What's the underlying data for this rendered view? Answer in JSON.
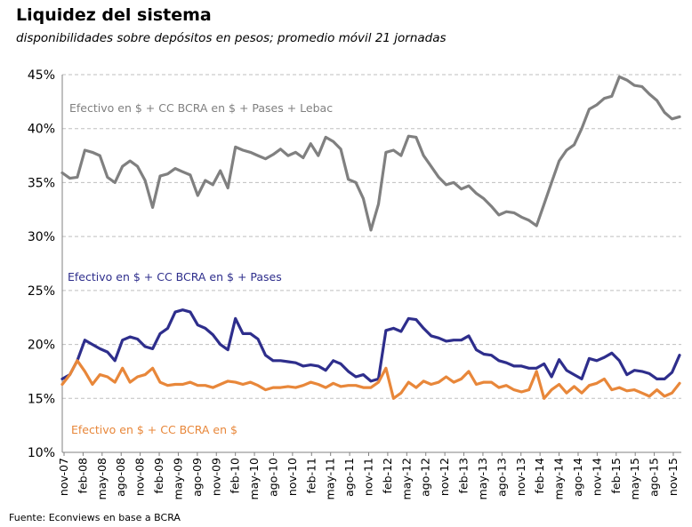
{
  "title": "Liquidez del sistema",
  "subtitle": "disponibilidades sobre depósitos en pesos; promedio móvil 21  jornadas",
  "source": "Fuente: Econviews en base a BCRA",
  "chart_data": {
    "type": "line",
    "y_ticks": [
      "10%",
      "15%",
      "20%",
      "25%",
      "30%",
      "35%",
      "40%",
      "45%"
    ],
    "ylim": [
      10,
      45
    ],
    "x_tick_labels": [
      "nov-07",
      "feb-08",
      "may-08",
      "ago-08",
      "nov-08",
      "feb-09",
      "may-09",
      "ago-09",
      "nov-09",
      "feb-10",
      "may-10",
      "ago-10",
      "nov-10",
      "feb-11",
      "may-11",
      "ago-11",
      "nov-11",
      "feb-12",
      "may-12",
      "ago-12",
      "nov-12",
      "feb-13",
      "may-13",
      "ago-13",
      "nov-13",
      "feb-14",
      "may-14",
      "ago-14",
      "nov-14",
      "feb-15",
      "may-15",
      "ago-15",
      "nov-15"
    ],
    "grid": "horizontal dashed",
    "series": [
      {
        "name": "Efectivo en $ + CC BCRA en $ + Pases + Lebac",
        "color": "#808080",
        "values": [
          35.9,
          35.4,
          35.5,
          38.0,
          37.8,
          37.5,
          35.5,
          35.0,
          36.5,
          37.0,
          36.5,
          35.2,
          32.7,
          35.6,
          35.8,
          36.3,
          36.0,
          35.7,
          33.8,
          35.2,
          34.8,
          36.1,
          34.5,
          38.3,
          38.0,
          37.8,
          37.5,
          37.2,
          37.6,
          38.1,
          37.5,
          37.8,
          37.3,
          38.6,
          37.5,
          39.2,
          38.8,
          38.1,
          35.3,
          35.0,
          33.5,
          30.6,
          33.0,
          37.8,
          38.0,
          37.5,
          39.3,
          39.2,
          37.5,
          36.5,
          35.5,
          34.8,
          35.0,
          34.4,
          34.7,
          34.0,
          33.5,
          32.8,
          32.0,
          32.3,
          32.2,
          31.8,
          31.5,
          31.0,
          33.0,
          35.0,
          37.0,
          38.0,
          38.5,
          40.0,
          41.8,
          42.2,
          42.8,
          43.0,
          44.8,
          44.5,
          44.0,
          43.9,
          43.2,
          42.6,
          41.5,
          40.9,
          41.1
        ]
      },
      {
        "name": "Efectivo en $ + CC BCRA en $ + Pases",
        "color": "#2e2e8c",
        "values": [
          16.8,
          17.2,
          18.5,
          20.4,
          20.0,
          19.6,
          19.3,
          18.5,
          20.4,
          20.7,
          20.5,
          19.8,
          19.6,
          21.0,
          21.5,
          23.0,
          23.2,
          23.0,
          21.8,
          21.5,
          20.9,
          20.0,
          19.5,
          22.4,
          21.0,
          21.0,
          20.5,
          19.0,
          18.5,
          18.5,
          18.4,
          18.3,
          18.0,
          18.1,
          18.0,
          17.6,
          18.5,
          18.2,
          17.5,
          17.0,
          17.2,
          16.6,
          16.8,
          21.3,
          21.5,
          21.2,
          22.4,
          22.3,
          21.5,
          20.8,
          20.6,
          20.3,
          20.4,
          20.4,
          20.8,
          19.5,
          19.1,
          19.0,
          18.5,
          18.3,
          18.0,
          18.0,
          17.8,
          17.8,
          18.2,
          17.0,
          18.6,
          17.6,
          17.2,
          16.8,
          18.7,
          18.5,
          18.8,
          19.2,
          18.5,
          17.2,
          17.6,
          17.5,
          17.3,
          16.8,
          16.8,
          17.4,
          19.0
        ]
      },
      {
        "name": "Efectivo en $ + CC BCRA en $",
        "color": "#e8873a",
        "values": [
          16.3,
          17.2,
          18.5,
          17.5,
          16.3,
          17.2,
          17.0,
          16.5,
          17.8,
          16.5,
          17.0,
          17.2,
          17.8,
          16.5,
          16.2,
          16.3,
          16.3,
          16.5,
          16.2,
          16.2,
          16.0,
          16.3,
          16.6,
          16.5,
          16.3,
          16.5,
          16.2,
          15.8,
          16.0,
          16.0,
          16.1,
          16.0,
          16.2,
          16.5,
          16.3,
          16.0,
          16.4,
          16.1,
          16.2,
          16.2,
          16.0,
          16.0,
          16.5,
          17.8,
          15.0,
          15.5,
          16.5,
          16.0,
          16.6,
          16.3,
          16.5,
          17.0,
          16.5,
          16.8,
          17.5,
          16.3,
          16.5,
          16.5,
          16.0,
          16.2,
          15.8,
          15.6,
          15.8,
          17.5,
          15.0,
          15.8,
          16.3,
          15.5,
          16.1,
          15.5,
          16.2,
          16.4,
          16.8,
          15.8,
          16.0,
          15.7,
          15.8,
          15.5,
          15.2,
          15.8,
          15.2,
          15.5,
          16.4
        ]
      }
    ]
  }
}
